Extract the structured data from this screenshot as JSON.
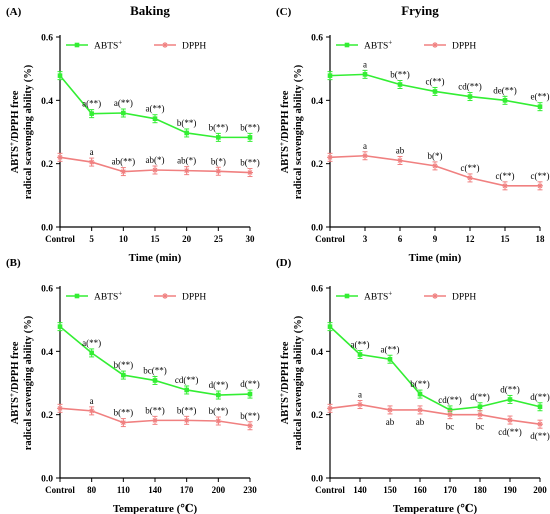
{
  "chart_data": [
    {
      "type": "line",
      "panel": "(A)",
      "title": "Baking",
      "xlabel": "Time (min)",
      "ylabel_line1": "ABTS",
      "ylabel_sup": "+",
      "ylabel_line1_rest": "/DPPH free",
      "ylabel_line2": "radical scavenging ability (%)",
      "categories": [
        "Control",
        "5",
        "10",
        "15",
        "20",
        "25",
        "30"
      ],
      "ylim": [
        0,
        0.6
      ],
      "yticks": [
        "0.0",
        "0.2",
        "0.4",
        "0.6"
      ],
      "legend": [
        {
          "name": "ABTS",
          "sup": "+"
        },
        {
          "name": "DPPH",
          "sup": ""
        }
      ],
      "series": [
        {
          "name": "ABTS+",
          "color": "#33ee33",
          "marker": "square",
          "values": [
            0.478,
            0.358,
            0.36,
            0.342,
            0.297,
            0.283,
            0.283
          ],
          "labels": [
            "",
            "a(**)",
            "a(**)",
            "a(**)",
            "b(**)",
            "b(**)",
            "b(**)"
          ]
        },
        {
          "name": "DPPH",
          "color": "#f08080",
          "marker": "star",
          "values": [
            0.22,
            0.205,
            0.175,
            0.18,
            0.178,
            0.176,
            0.172
          ],
          "labels": [
            "",
            "a",
            "ab(**)",
            "ab(*)",
            "ab(*)",
            "b(*)",
            "b(**)"
          ]
        }
      ]
    },
    {
      "type": "line",
      "panel": "(C)",
      "title": "Frying",
      "xlabel": "Time (min)",
      "ylabel_line1": "ABTS",
      "ylabel_sup": "+",
      "ylabel_line1_rest": "/DPPH free",
      "ylabel_line2": "radical scavenging ability (%)",
      "categories": [
        "Control",
        "3",
        "6",
        "9",
        "12",
        "15",
        "18"
      ],
      "ylim": [
        0,
        0.6
      ],
      "yticks": [
        "0.0",
        "0.2",
        "0.4",
        "0.6"
      ],
      "legend": [
        {
          "name": "ABTS",
          "sup": "+"
        },
        {
          "name": "DPPH",
          "sup": ""
        }
      ],
      "series": [
        {
          "name": "ABTS+",
          "color": "#33ee33",
          "marker": "square",
          "values": [
            0.478,
            0.482,
            0.45,
            0.428,
            0.412,
            0.4,
            0.38
          ],
          "labels": [
            "",
            "a",
            "b(**)",
            "c(**)",
            "cd(**)",
            "de(**)",
            "e(**)"
          ]
        },
        {
          "name": "DPPH",
          "color": "#f08080",
          "marker": "star",
          "values": [
            0.22,
            0.225,
            0.21,
            0.193,
            0.155,
            0.13,
            0.13
          ],
          "labels": [
            "",
            "a",
            "ab",
            "b(*)",
            "c(**)",
            "c(**)",
            "c(**)"
          ]
        }
      ]
    },
    {
      "type": "line",
      "panel": "(B)",
      "title": "",
      "xlabel": "Temperature (℃)",
      "ylabel_line1": "ABTS",
      "ylabel_sup": "+",
      "ylabel_line1_rest": "/DPPH free",
      "ylabel_line2": "radical scavenging ability (%)",
      "categories": [
        "Control",
        "80",
        "110",
        "140",
        "170",
        "200",
        "230"
      ],
      "ylim": [
        0,
        0.6
      ],
      "yticks": [
        "0.0",
        "0.2",
        "0.4",
        "0.6"
      ],
      "legend": [
        {
          "name": "ABTS",
          "sup": "+"
        },
        {
          "name": "DPPH",
          "sup": ""
        }
      ],
      "series": [
        {
          "name": "ABTS+",
          "color": "#33ee33",
          "marker": "square",
          "values": [
            0.478,
            0.395,
            0.325,
            0.308,
            0.278,
            0.262,
            0.265
          ],
          "labels": [
            "",
            "a(**)",
            "b(**)",
            "bc(**)",
            "cd(**)",
            "d(**)",
            "d(**)"
          ]
        },
        {
          "name": "DPPH",
          "color": "#f08080",
          "marker": "star",
          "values": [
            0.22,
            0.212,
            0.175,
            0.182,
            0.182,
            0.18,
            0.165
          ],
          "labels": [
            "",
            "a",
            "b(**)",
            "b(**)",
            "b(**)",
            "b(**)",
            "b(**)"
          ]
        }
      ]
    },
    {
      "type": "line",
      "panel": "(D)",
      "title": "",
      "xlabel": "Temperature (℃)",
      "ylabel_line1": "ABTS",
      "ylabel_sup": "+",
      "ylabel_line1_rest": "/DPPH free",
      "ylabel_line2": "radical scavenging ability (%)",
      "categories": [
        "Control",
        "140",
        "150",
        "160",
        "170",
        "180",
        "190",
        "200"
      ],
      "ylim": [
        0,
        0.6
      ],
      "yticks": [
        "0.0",
        "0.2",
        "0.4",
        "0.6"
      ],
      "legend": [
        {
          "name": "ABTS",
          "sup": "+"
        },
        {
          "name": "DPPH",
          "sup": ""
        }
      ],
      "series": [
        {
          "name": "ABTS+",
          "color": "#33ee33",
          "marker": "square",
          "values": [
            0.478,
            0.39,
            0.375,
            0.265,
            0.215,
            0.225,
            0.248,
            0.225
          ],
          "labels": [
            "",
            "a(**)",
            "a(**)",
            "b(**)",
            "cd(**)",
            "d(**)",
            "d(**)",
            "d(**)"
          ],
          "label_pos": [
            "",
            "above",
            "above",
            "above",
            "above",
            "above",
            "above",
            "above"
          ]
        },
        {
          "name": "DPPH",
          "color": "#f08080",
          "marker": "star",
          "values": [
            0.22,
            0.232,
            0.215,
            0.215,
            0.2,
            0.2,
            0.183,
            0.17
          ],
          "labels": [
            "",
            "a",
            "ab",
            "ab",
            "bc",
            "bc",
            "cd(**)",
            "d(**)"
          ],
          "label_pos": [
            "",
            "above",
            "below",
            "below",
            "below",
            "below",
            "below",
            "below"
          ]
        }
      ]
    }
  ]
}
